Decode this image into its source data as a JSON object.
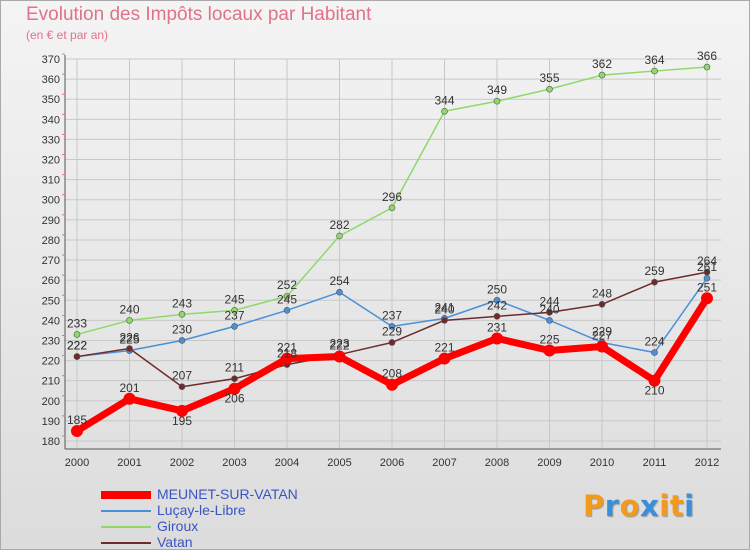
{
  "title": "Evolution des Impôts locaux par Habitant",
  "subtitle": "(en € et par an)",
  "logo": {
    "text": "Proxiti",
    "colors": [
      "#f39a1b",
      "#3b8fd9",
      "#f39a1b",
      "#3b8fd9",
      "#f39a1b",
      "#f39a1b",
      "#3b8fd9"
    ]
  },
  "chart_data": {
    "type": "line",
    "title": "Evolution des Impôts locaux par Habitant",
    "subtitle": "(en € et par an)",
    "xlabel": "",
    "ylabel": "",
    "x": [
      "2000",
      "2001",
      "2002",
      "2003",
      "2004",
      "2005",
      "2006",
      "2007",
      "2008",
      "2009",
      "2010",
      "2011",
      "2012"
    ],
    "ylim": [
      180,
      370
    ],
    "yticks": [
      180,
      190,
      200,
      210,
      220,
      230,
      240,
      250,
      260,
      270,
      280,
      290,
      300,
      310,
      320,
      330,
      340,
      350,
      360,
      370
    ],
    "grid": true,
    "legend_position": "bottom-left",
    "series": [
      {
        "name": "MEUNET-SUR-VATAN",
        "color": "#ff0000",
        "values": [
          185,
          201,
          195,
          206,
          221,
          222,
          208,
          221,
          231,
          225,
          227,
          210,
          251
        ]
      },
      {
        "name": "Luçay-le-Libre",
        "color": "#4a90d9",
        "values": [
          222,
          225,
          230,
          237,
          245,
          254,
          237,
          241,
          250,
          240,
          229,
          224,
          261
        ]
      },
      {
        "name": "Giroux",
        "color": "#8fd96a",
        "values": [
          233,
          240,
          243,
          245,
          252,
          282,
          296,
          344,
          349,
          355,
          362,
          364,
          366
        ]
      },
      {
        "name": "Vatan",
        "color": "#6e2b2b",
        "values": [
          222,
          226,
          207,
          211,
          218,
          223,
          229,
          240,
          242,
          244,
          248,
          259,
          264
        ]
      }
    ]
  }
}
